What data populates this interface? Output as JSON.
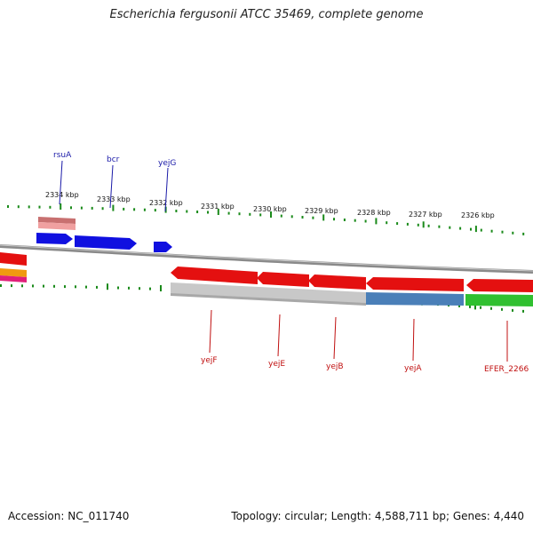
{
  "title": "Escherichia fergusonii ATCC 35469, complete genome",
  "accession": "Accession: NC_011740",
  "summary": "Topology: circular; Length: 4,588,711 bp; Genes: 4,440",
  "ticks": [
    "2334 kbp",
    "2333 kbp",
    "2332 kbp",
    "2331 kbp",
    "2330 kbp",
    "2329 kbp",
    "2328 kbp",
    "2327 kbp",
    "2326 kbp"
  ],
  "genes_forward": [
    "rsuA",
    "bcr",
    "yejG"
  ],
  "genes_reverse": [
    "yejF",
    "yejE",
    "yejB",
    "yejA",
    "EFER_2266"
  ],
  "colors": {
    "forward_cds": "#1010e0",
    "reverse_cds": "#e41010",
    "backbone": "#8a8a8a",
    "tick": "#1a8a1a",
    "feature_pink": "#e88080",
    "feature_orange": "#f09a10",
    "feature_magenta": "#e0207a",
    "feature_steelblue": "#4a7fb8",
    "feature_green": "#30c030",
    "feature_gray": "#c8c8c8"
  }
}
